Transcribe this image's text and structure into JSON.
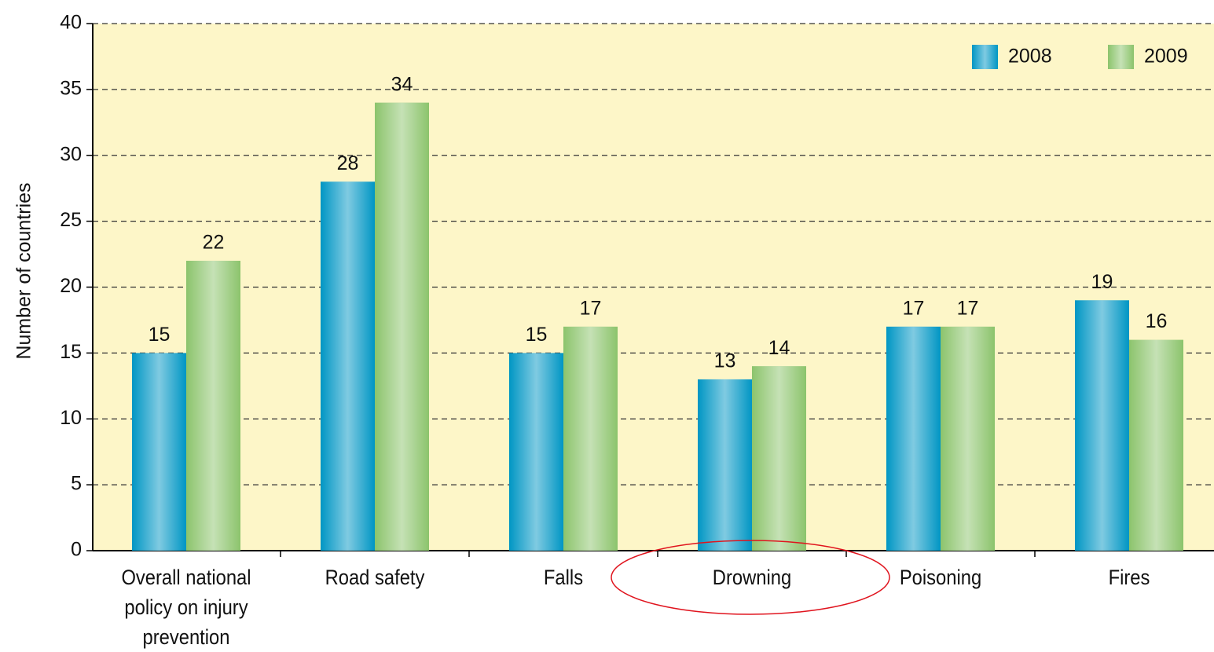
{
  "chart_data": {
    "type": "bar",
    "y_label": "Number of countries",
    "categories": [
      "Overall national policy on injury prevention",
      "Road safety",
      "Falls",
      "Drowning",
      "Poisoning",
      "Fires"
    ],
    "series": [
      {
        "name": "2008",
        "color": "#0096c4",
        "values": [
          15,
          28,
          15,
          13,
          17,
          19
        ]
      },
      {
        "name": "2009",
        "color": "#8cc46c",
        "values": [
          22,
          34,
          17,
          14,
          17,
          16
        ]
      }
    ],
    "ylim": [
      0,
      40
    ],
    "yticks": [
      0,
      5,
      10,
      15,
      20,
      25,
      30,
      35,
      40
    ],
    "grid": true,
    "legend": "upper right"
  }
}
